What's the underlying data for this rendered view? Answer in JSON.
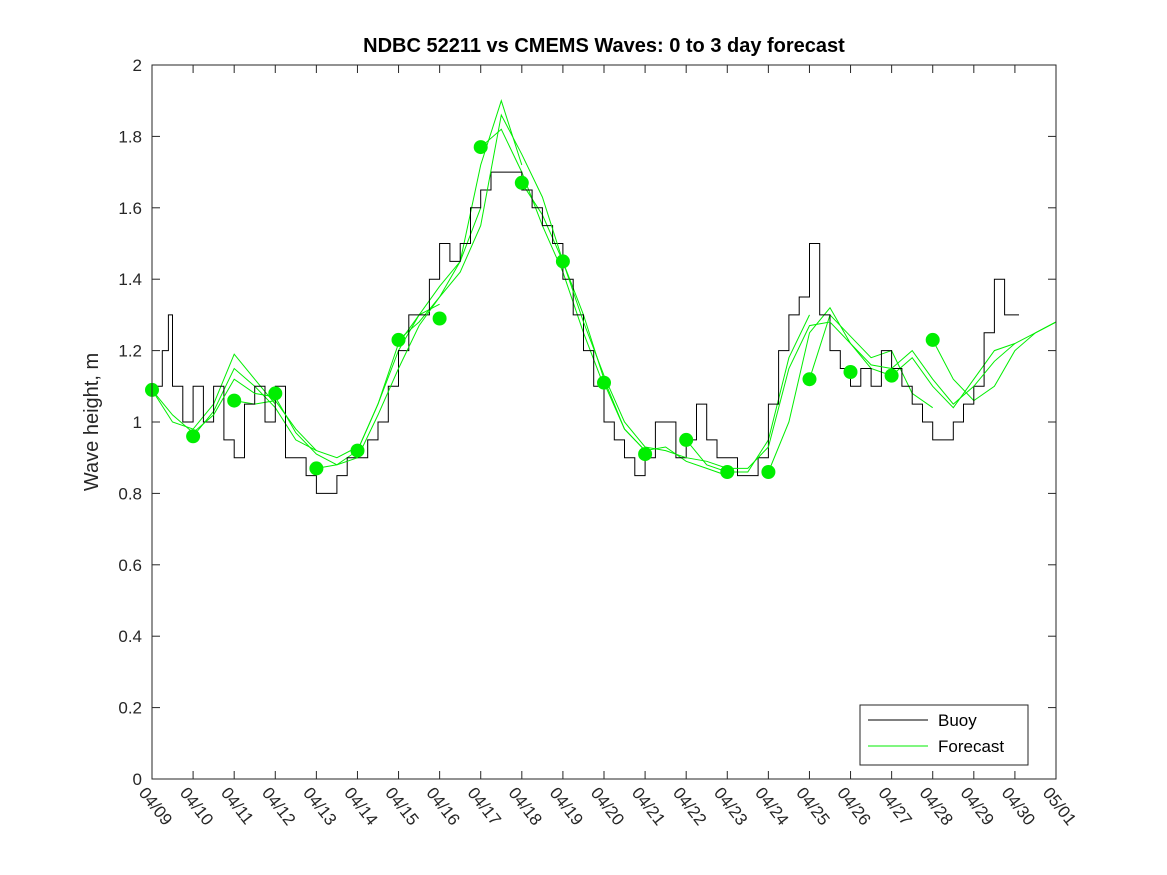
{
  "chart_data": {
    "type": "line",
    "title": "NDBC 52211 vs CMEMS Waves: 0 to 3 day forecast",
    "ylabel": "Wave height, m",
    "xlabel": "",
    "ylim": [
      0,
      2
    ],
    "yticks": [
      0,
      0.2,
      0.4,
      0.6,
      0.8,
      1,
      1.2,
      1.4,
      1.6,
      1.8,
      2
    ],
    "ytick_labels": [
      "0",
      "0.2",
      "0.4",
      "0.6",
      "0.8",
      "1",
      "1.2",
      "1.4",
      "1.6",
      "1.8",
      "2"
    ],
    "xlim_days": [
      0,
      22
    ],
    "xtick_labels": [
      "04/09",
      "04/10",
      "04/11",
      "04/12",
      "04/13",
      "04/14",
      "04/15",
      "04/16",
      "04/17",
      "04/18",
      "04/19",
      "04/20",
      "04/21",
      "04/22",
      "04/23",
      "04/24",
      "04/25",
      "04/26",
      "04/27",
      "04/28",
      "04/29",
      "04/30",
      "05/01"
    ],
    "grid": false,
    "legend": {
      "position": "bottom-right",
      "entries": [
        "Buoy",
        "Forecast"
      ]
    },
    "colors": {
      "buoy": "#000000",
      "forecast": "#00ee00",
      "axis": "#262626"
    },
    "series": [
      {
        "name": "Buoy",
        "x": [
          0,
          0.25,
          0.4,
          0.5,
          0.75,
          1.0,
          1.25,
          1.5,
          1.75,
          2.0,
          2.25,
          2.5,
          2.75,
          3.0,
          3.25,
          3.5,
          3.75,
          4.0,
          4.25,
          4.5,
          4.75,
          5.0,
          5.25,
          5.5,
          5.75,
          6.0,
          6.25,
          6.5,
          6.75,
          7.0,
          7.25,
          7.5,
          7.75,
          8.0,
          8.25,
          8.5,
          8.75,
          9.0,
          9.25,
          9.5,
          9.75,
          10.0,
          10.25,
          10.5,
          10.75,
          11.0,
          11.25,
          11.5,
          11.75,
          12.0,
          12.25,
          12.5,
          12.75,
          13.0,
          13.25,
          13.5,
          13.75,
          14.0,
          14.25,
          14.5,
          14.75,
          15.0,
          15.25,
          15.5,
          15.75,
          16.0,
          16.25,
          16.5,
          16.75,
          17.0,
          17.25,
          17.5,
          17.75,
          18.0,
          18.25,
          18.5,
          18.75,
          19.0,
          19.25,
          19.5,
          19.75,
          20.0,
          20.25,
          20.5,
          20.75,
          21.0,
          21.1
        ],
        "y": [
          1.1,
          1.2,
          1.3,
          1.1,
          1.0,
          1.1,
          1.0,
          1.1,
          0.95,
          0.9,
          1.05,
          1.1,
          1.0,
          1.1,
          0.9,
          0.9,
          0.85,
          0.8,
          0.8,
          0.85,
          0.9,
          0.9,
          0.95,
          1.0,
          1.1,
          1.2,
          1.3,
          1.3,
          1.4,
          1.5,
          1.45,
          1.5,
          1.6,
          1.65,
          1.7,
          1.7,
          1.7,
          1.65,
          1.6,
          1.55,
          1.5,
          1.4,
          1.3,
          1.2,
          1.1,
          1.0,
          0.95,
          0.9,
          0.85,
          0.9,
          1.0,
          1.0,
          0.9,
          0.95,
          1.05,
          0.95,
          0.9,
          0.9,
          0.85,
          0.85,
          0.9,
          1.05,
          1.2,
          1.3,
          1.35,
          1.5,
          1.3,
          1.2,
          1.15,
          1.1,
          1.15,
          1.1,
          1.2,
          1.15,
          1.1,
          1.05,
          1.0,
          0.95,
          0.95,
          1.0,
          1.05,
          1.1,
          1.25,
          1.4,
          1.3,
          1.3,
          1.3
        ]
      },
      {
        "name": "Forecast",
        "x": [
          0,
          0.5,
          1.0,
          1.5,
          2.0,
          2.5,
          3.0,
          3.5,
          4.0,
          4.5,
          5.0,
          5.5,
          6.0,
          6.5,
          7.0,
          7.5,
          8.0,
          8.5,
          9.0,
          9.5,
          10.0,
          10.5,
          11.0,
          11.5,
          12.0,
          12.5,
          13.0,
          13.5,
          14.0,
          14.5,
          15.0,
          15.5,
          16.0,
          16.5,
          17.0,
          17.5,
          18.0,
          18.5,
          19.0,
          19.5,
          20.0,
          20.5,
          21.0,
          21.5,
          22.0
        ],
        "y": [
          1.09,
          1.02,
          0.97,
          1.02,
          1.12,
          1.08,
          1.07,
          0.97,
          0.91,
          0.88,
          0.9,
          1.02,
          1.15,
          1.27,
          1.35,
          1.42,
          1.55,
          1.86,
          1.75,
          1.63,
          1.45,
          1.28,
          1.13,
          1.0,
          0.93,
          0.92,
          0.9,
          0.89,
          0.87,
          0.87,
          0.93,
          1.15,
          1.27,
          1.28,
          1.22,
          1.16,
          1.15,
          1.2,
          1.12,
          1.05,
          1.1,
          1.17,
          1.22,
          1.25,
          1.28
        ]
      }
    ],
    "forecast_ensemble": [
      {
        "x": [
          0,
          0.5,
          1.0,
          1.5,
          2.0,
          2.5,
          3.0
        ],
        "y": [
          1.09,
          1.0,
          0.98,
          1.05,
          1.19,
          1.12,
          1.05
        ]
      },
      {
        "x": [
          1.0,
          1.5,
          2.0,
          2.5,
          3.0,
          3.5,
          4.0
        ],
        "y": [
          0.96,
          1.03,
          1.15,
          1.1,
          1.04,
          0.95,
          0.92
        ]
      },
      {
        "x": [
          2.0,
          2.5,
          3.0,
          3.5,
          4.0,
          4.5,
          5.0
        ],
        "y": [
          1.06,
          1.05,
          1.06,
          0.98,
          0.92,
          0.9,
          0.93
        ]
      },
      {
        "x": [
          4.0,
          4.5,
          5.0,
          5.5,
          6.0,
          6.5,
          7.0
        ],
        "y": [
          0.87,
          0.88,
          0.92,
          1.05,
          1.2,
          1.3,
          1.33
        ]
      },
      {
        "x": [
          5.0,
          5.5,
          6.0,
          6.5,
          7.0,
          7.5,
          8.0
        ],
        "y": [
          0.92,
          1.05,
          1.22,
          1.3,
          1.38,
          1.45,
          1.6
        ]
      },
      {
        "x": [
          6.0,
          6.5,
          7.0,
          7.5,
          8.0,
          8.5,
          9.0
        ],
        "y": [
          1.23,
          1.28,
          1.35,
          1.45,
          1.72,
          1.9,
          1.72
        ]
      },
      {
        "x": [
          8.0,
          8.5,
          9.0,
          9.5,
          10.0,
          10.5,
          11.0
        ],
        "y": [
          1.77,
          1.82,
          1.7,
          1.55,
          1.42,
          1.25,
          1.1
        ]
      },
      {
        "x": [
          9.0,
          9.5,
          10.0,
          10.5,
          11.0,
          11.5,
          12.0
        ],
        "y": [
          1.67,
          1.58,
          1.45,
          1.3,
          1.12,
          0.98,
          0.92
        ]
      },
      {
        "x": [
          11.0,
          11.5,
          12.0,
          12.5,
          13.0,
          13.5,
          14.0
        ],
        "y": [
          1.11,
          0.98,
          0.92,
          0.93,
          0.89,
          0.87,
          0.85
        ]
      },
      {
        "x": [
          13.0,
          13.5,
          14.0,
          14.5,
          15.0,
          15.5,
          16.0
        ],
        "y": [
          0.95,
          0.88,
          0.86,
          0.86,
          0.95,
          1.18,
          1.3
        ]
      },
      {
        "x": [
          15.0,
          15.5,
          16.0,
          16.5,
          17.0,
          17.5,
          18.0
        ],
        "y": [
          0.86,
          1.0,
          1.25,
          1.32,
          1.22,
          1.15,
          1.13
        ]
      },
      {
        "x": [
          16.0,
          16.5,
          17.0,
          17.5,
          18.0,
          18.5,
          19.0
        ],
        "y": [
          1.12,
          1.3,
          1.24,
          1.18,
          1.2,
          1.08,
          1.04
        ]
      },
      {
        "x": [
          18.0,
          18.5,
          19.0,
          19.5,
          20.0,
          20.5,
          21.0
        ],
        "y": [
          1.13,
          1.18,
          1.1,
          1.04,
          1.12,
          1.2,
          1.22
        ]
      },
      {
        "x": [
          19.0,
          19.5,
          20.0,
          20.5,
          21.0,
          21.5,
          22.0
        ],
        "y": [
          1.23,
          1.12,
          1.06,
          1.1,
          1.2,
          1.25,
          1.28
        ]
      }
    ],
    "forecast_markers": {
      "x": [
        0,
        1,
        2,
        3,
        4,
        5,
        6,
        7,
        8,
        9,
        10,
        11,
        12,
        13,
        14,
        15,
        16,
        17,
        18,
        19
      ],
      "y": [
        1.09,
        0.96,
        1.06,
        1.08,
        0.87,
        0.92,
        1.23,
        1.29,
        1.77,
        1.67,
        1.45,
        1.11,
        0.91,
        0.95,
        0.86,
        0.86,
        1.12,
        1.14,
        1.13,
        1.23
      ]
    }
  }
}
